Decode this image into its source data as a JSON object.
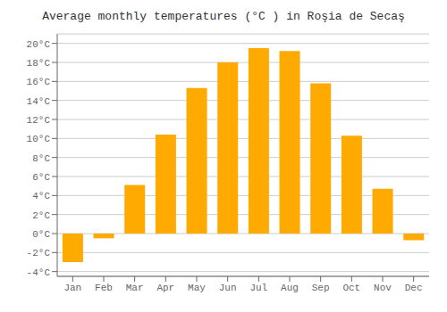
{
  "chart_data": {
    "type": "bar",
    "title": "Average monthly temperatures (°C ) in Roşia de Secaş",
    "categories": [
      "Jan",
      "Feb",
      "Mar",
      "Apr",
      "May",
      "Jun",
      "Jul",
      "Aug",
      "Sep",
      "Oct",
      "Nov",
      "Dec"
    ],
    "values": [
      -3.0,
      -0.5,
      5.1,
      10.4,
      15.3,
      18.0,
      19.5,
      19.2,
      15.8,
      10.3,
      4.7,
      -0.7
    ],
    "color": "#FFAA00",
    "ylim": [
      -4.5,
      21
    ],
    "yticks": [
      {
        "value": -4,
        "label": "-4°C"
      },
      {
        "value": -2,
        "label": "-2°C"
      },
      {
        "value": 0,
        "label": "0°C"
      },
      {
        "value": 2,
        "label": "2°C"
      },
      {
        "value": 4,
        "label": "4°C"
      },
      {
        "value": 6,
        "label": "6°C"
      },
      {
        "value": 8,
        "label": "8°C"
      },
      {
        "value": 10,
        "label": "10°C"
      },
      {
        "value": 12,
        "label": "12°C"
      },
      {
        "value": 14,
        "label": "14°C"
      },
      {
        "value": 16,
        "label": "16°C"
      },
      {
        "value": 18,
        "label": "18°C"
      },
      {
        "value": 20,
        "label": "20°C"
      }
    ],
    "grid": true
  }
}
